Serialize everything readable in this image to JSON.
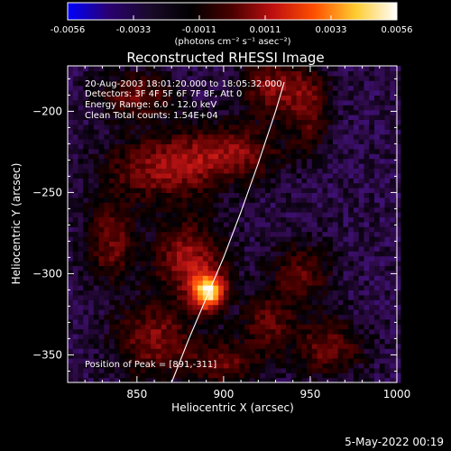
{
  "colorbar": {
    "ticks": [
      "-0.0056",
      "-0.0033",
      "-0.0011",
      "0.0011",
      "0.0033",
      "0.0056"
    ],
    "units": "(photons cm⁻² s⁻¹ asec⁻²)",
    "colors": [
      "#0000ff",
      "#2a0070",
      "#1a0a2a",
      "#000000",
      "#4a0000",
      "#c01010",
      "#ff5000",
      "#ffcc30",
      "#ffffff"
    ]
  },
  "chart_data": {
    "type": "heatmap",
    "title": "Reconstructed RHESSI Image",
    "xlabel": "Heliocentric X (arcsec)",
    "ylabel": "Heliocentric Y (arcsec)",
    "xlim": [
      810,
      1000
    ],
    "ylim": [
      -367,
      -172
    ],
    "x_ticks": [
      850,
      900,
      950,
      1000
    ],
    "y_ticks": [
      -200,
      -250,
      -300,
      -350
    ],
    "x_tick_labels": [
      "850",
      "900",
      "950",
      "1000"
    ],
    "y_tick_labels": [
      "−200",
      "−250",
      "−300",
      "−350"
    ],
    "annotations": [
      "20-Aug-2003 18:01:20.000 to 18:05:32.000",
      "Detectors: 3F 4F 5F 6F 7F 8F, Att 0",
      "Energy Range: 6.0 - 12.0 keV",
      "Clean     Total counts: 1.54E+04"
    ],
    "peak_label": "Position of Peak = [891,-311]",
    "peak": [
      891,
      -311
    ],
    "limb_curve": [
      [
        870,
        -367
      ],
      [
        880,
        -340
      ],
      [
        890,
        -315
      ],
      [
        900,
        -290
      ],
      [
        910,
        -262
      ],
      [
        920,
        -232
      ],
      [
        930,
        -200
      ],
      [
        935,
        -182
      ]
    ],
    "blobs": [
      {
        "x": 891,
        "y": -311,
        "sx": 7,
        "sy": 8,
        "amp": 1.0
      },
      {
        "x": 880,
        "y": -290,
        "sx": 14,
        "sy": 16,
        "amp": 0.45
      },
      {
        "x": 865,
        "y": -235,
        "sx": 22,
        "sy": 14,
        "amp": 0.42
      },
      {
        "x": 905,
        "y": -225,
        "sx": 20,
        "sy": 12,
        "amp": 0.38
      },
      {
        "x": 930,
        "y": -185,
        "sx": 14,
        "sy": 12,
        "amp": 0.4
      },
      {
        "x": 850,
        "y": -190,
        "sx": 15,
        "sy": 10,
        "amp": 0.35
      },
      {
        "x": 835,
        "y": -280,
        "sx": 10,
        "sy": 18,
        "amp": 0.35
      },
      {
        "x": 860,
        "y": -340,
        "sx": 16,
        "sy": 16,
        "amp": 0.38
      },
      {
        "x": 900,
        "y": -355,
        "sx": 14,
        "sy": 10,
        "amp": 0.32
      },
      {
        "x": 945,
        "y": -300,
        "sx": 12,
        "sy": 14,
        "amp": 0.3
      },
      {
        "x": 960,
        "y": -345,
        "sx": 14,
        "sy": 12,
        "amp": 0.35
      },
      {
        "x": 950,
        "y": -200,
        "sx": 8,
        "sy": 16,
        "amp": 0.3
      },
      {
        "x": 925,
        "y": -330,
        "sx": 10,
        "sy": 14,
        "amp": 0.3
      }
    ]
  },
  "footer": {
    "date": "5-May-2022 00:19"
  }
}
